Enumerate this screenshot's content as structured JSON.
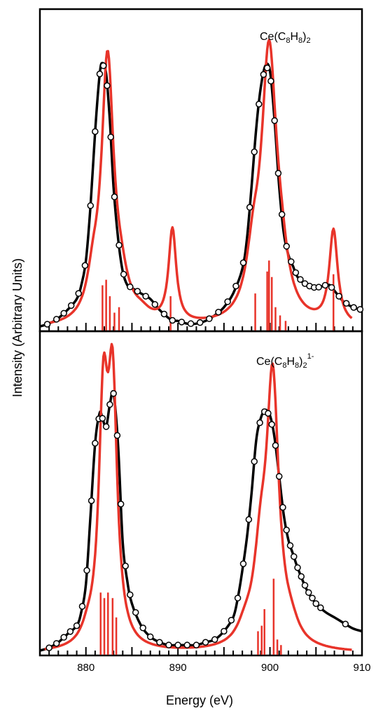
{
  "colors": {
    "experimental": "#000000",
    "calculated": "#e8342a",
    "frame": "#000000"
  },
  "chart_data": {
    "type": "line",
    "xlabel": "Energy (eV)",
    "ylabel": "Intensity (Arbitrary Units)",
    "xlim": [
      875,
      910
    ],
    "xticks": [
      880,
      890,
      900,
      910
    ],
    "ylim": [
      0,
      1
    ],
    "grid": false,
    "panels": [
      {
        "label": {
          "prefix": "Ce(C",
          "sub1": "8",
          "mid": "H",
          "sub2": "8",
          "close": ")",
          "sub3": "2",
          "sup": ""
        },
        "experimental": {
          "x": [
            875.0,
            876.0,
            877.0,
            878.0,
            879.0,
            879.5,
            880.0,
            880.5,
            881.0,
            881.5,
            881.8,
            882.2,
            882.6,
            883.0,
            883.5,
            884.0,
            884.5,
            885.0,
            886.0,
            887.0,
            888.0,
            889.0,
            889.5,
            890.0,
            891.0,
            892.0,
            893.0,
            894.0,
            895.0,
            896.0,
            897.0,
            897.5,
            898.0,
            898.5,
            899.0,
            899.5,
            900.0,
            900.5,
            901.0,
            901.5,
            902.0,
            902.5,
            903.0,
            904.0,
            905.0,
            906.0,
            906.5,
            907.0,
            908.0,
            909.0,
            910.0
          ],
          "y": [
            0.01,
            0.02,
            0.04,
            0.07,
            0.11,
            0.16,
            0.25,
            0.45,
            0.72,
            0.93,
            0.97,
            0.93,
            0.76,
            0.52,
            0.33,
            0.21,
            0.16,
            0.15,
            0.13,
            0.11,
            0.07,
            0.04,
            0.03,
            0.03,
            0.02,
            0.02,
            0.03,
            0.05,
            0.08,
            0.13,
            0.22,
            0.33,
            0.52,
            0.73,
            0.88,
            0.96,
            0.94,
            0.76,
            0.52,
            0.35,
            0.27,
            0.23,
            0.19,
            0.16,
            0.15,
            0.16,
            0.16,
            0.14,
            0.1,
            0.08,
            0.07
          ]
        },
        "experimental_markers_x": [
          875.8,
          876.8,
          877.6,
          878.4,
          879.2,
          879.9,
          880.5,
          881.0,
          881.5,
          881.9,
          882.3,
          882.7,
          883.1,
          883.6,
          884.1,
          884.8,
          885.6,
          886.5,
          887.5,
          888.5,
          889.4,
          890.4,
          891.4,
          892.4,
          893.4,
          894.4,
          895.4,
          896.3,
          897.1,
          897.8,
          898.3,
          898.8,
          899.3,
          899.7,
          900.1,
          900.5,
          900.9,
          901.3,
          901.8,
          902.3,
          902.8,
          903.3,
          903.8,
          904.3,
          904.8,
          905.3,
          906.0,
          906.7,
          907.5,
          908.3,
          909.1,
          909.8
        ],
        "calculated": {
          "peaks": [
            {
              "center": 882.35,
              "height": 0.95,
              "width": 0.8
            },
            {
              "center": 880.8,
              "height": 0.12,
              "width": 0.8
            },
            {
              "center": 883.8,
              "height": 0.1,
              "width": 1.0
            },
            {
              "center": 886.0,
              "height": 0.03,
              "width": 1.2
            },
            {
              "center": 889.4,
              "height": 0.34,
              "width": 0.5
            },
            {
              "center": 899.9,
              "height": 0.97,
              "width": 1.0
            },
            {
              "center": 898.2,
              "height": 0.18,
              "width": 0.9
            },
            {
              "center": 901.2,
              "height": 0.12,
              "width": 0.9
            },
            {
              "center": 906.9,
              "height": 0.34,
              "width": 0.55
            }
          ],
          "sticks": [
            {
              "x": 881.8,
              "y": 0.16
            },
            {
              "x": 882.2,
              "y": 0.18
            },
            {
              "x": 882.6,
              "y": 0.12
            },
            {
              "x": 883.1,
              "y": 0.06
            },
            {
              "x": 883.6,
              "y": 0.08
            },
            {
              "x": 889.2,
              "y": 0.12
            },
            {
              "x": 898.4,
              "y": 0.13
            },
            {
              "x": 899.7,
              "y": 0.21
            },
            {
              "x": 899.9,
              "y": 0.25
            },
            {
              "x": 900.2,
              "y": 0.19
            },
            {
              "x": 900.6,
              "y": 0.08
            },
            {
              "x": 901.1,
              "y": 0.05
            },
            {
              "x": 901.7,
              "y": 0.03
            },
            {
              "x": 906.9,
              "y": 0.2
            }
          ]
        }
      },
      {
        "label": {
          "prefix": "Ce(C",
          "sub1": "8",
          "mid": "H",
          "sub2": "8",
          "close": ")",
          "sub3": "2",
          "sup": "1-"
        },
        "experimental": {
          "x": [
            875.0,
            876.0,
            877.0,
            878.0,
            879.0,
            879.5,
            880.0,
            880.5,
            881.0,
            881.5,
            881.8,
            882.2,
            882.6,
            883.0,
            883.5,
            884.0,
            884.5,
            885.0,
            886.0,
            887.0,
            888.0,
            889.0,
            890.0,
            891.0,
            892.0,
            893.0,
            894.0,
            895.0,
            896.0,
            896.5,
            897.0,
            897.5,
            898.0,
            898.5,
            899.0,
            899.5,
            900.0,
            900.5,
            901.0,
            901.5,
            902.0,
            902.5,
            903.0,
            904.0,
            905.0,
            906.0,
            907.0,
            908.0,
            909.0,
            910.0
          ],
          "y": [
            0.01,
            0.02,
            0.04,
            0.07,
            0.1,
            0.15,
            0.25,
            0.5,
            0.76,
            0.87,
            0.85,
            0.82,
            0.9,
            0.94,
            0.75,
            0.4,
            0.26,
            0.18,
            0.1,
            0.06,
            0.04,
            0.03,
            0.03,
            0.03,
            0.03,
            0.04,
            0.05,
            0.08,
            0.13,
            0.2,
            0.3,
            0.42,
            0.58,
            0.77,
            0.85,
            0.88,
            0.86,
            0.78,
            0.64,
            0.5,
            0.41,
            0.36,
            0.31,
            0.23,
            0.18,
            0.15,
            0.13,
            0.11,
            0.09,
            0.08
          ]
        },
        "experimental_markers_x": [
          876.0,
          876.8,
          877.6,
          878.3,
          879.0,
          879.6,
          880.1,
          880.6,
          881.0,
          881.4,
          881.8,
          882.2,
          882.6,
          883.0,
          883.4,
          883.8,
          884.3,
          884.8,
          885.4,
          886.2,
          887.0,
          888.0,
          889.0,
          890.0,
          891.0,
          892.0,
          893.0,
          894.0,
          895.0,
          895.8,
          896.5,
          897.1,
          897.7,
          898.3,
          898.9,
          899.4,
          899.8,
          900.2,
          900.6,
          901.0,
          901.4,
          901.8,
          902.2,
          902.6,
          903.0,
          903.4,
          903.8,
          904.2,
          904.6,
          905.0,
          905.5,
          908.2
        ],
        "calculated": {
          "peaks": [
            {
              "center": 881.9,
              "height": 0.83,
              "width": 0.6
            },
            {
              "center": 882.9,
              "height": 0.88,
              "width": 0.6
            },
            {
              "center": 880.2,
              "height": 0.04,
              "width": 0.8
            },
            {
              "center": 900.3,
              "height": 0.94,
              "width": 0.8
            },
            {
              "center": 899.0,
              "height": 0.28,
              "width": 0.9
            },
            {
              "center": 897.3,
              "height": 0.05,
              "width": 1.0
            },
            {
              "center": 902.3,
              "height": 0.05,
              "width": 1.0
            }
          ],
          "sticks": [
            {
              "x": 881.6,
              "y": 0.22
            },
            {
              "x": 882.0,
              "y": 0.2
            },
            {
              "x": 882.4,
              "y": 0.22
            },
            {
              "x": 882.9,
              "y": 0.2
            },
            {
              "x": 883.3,
              "y": 0.13
            },
            {
              "x": 898.7,
              "y": 0.08
            },
            {
              "x": 899.1,
              "y": 0.1
            },
            {
              "x": 899.4,
              "y": 0.16
            },
            {
              "x": 900.4,
              "y": 0.27
            },
            {
              "x": 900.8,
              "y": 0.05
            },
            {
              "x": 901.2,
              "y": 0.03
            }
          ]
        }
      }
    ]
  }
}
